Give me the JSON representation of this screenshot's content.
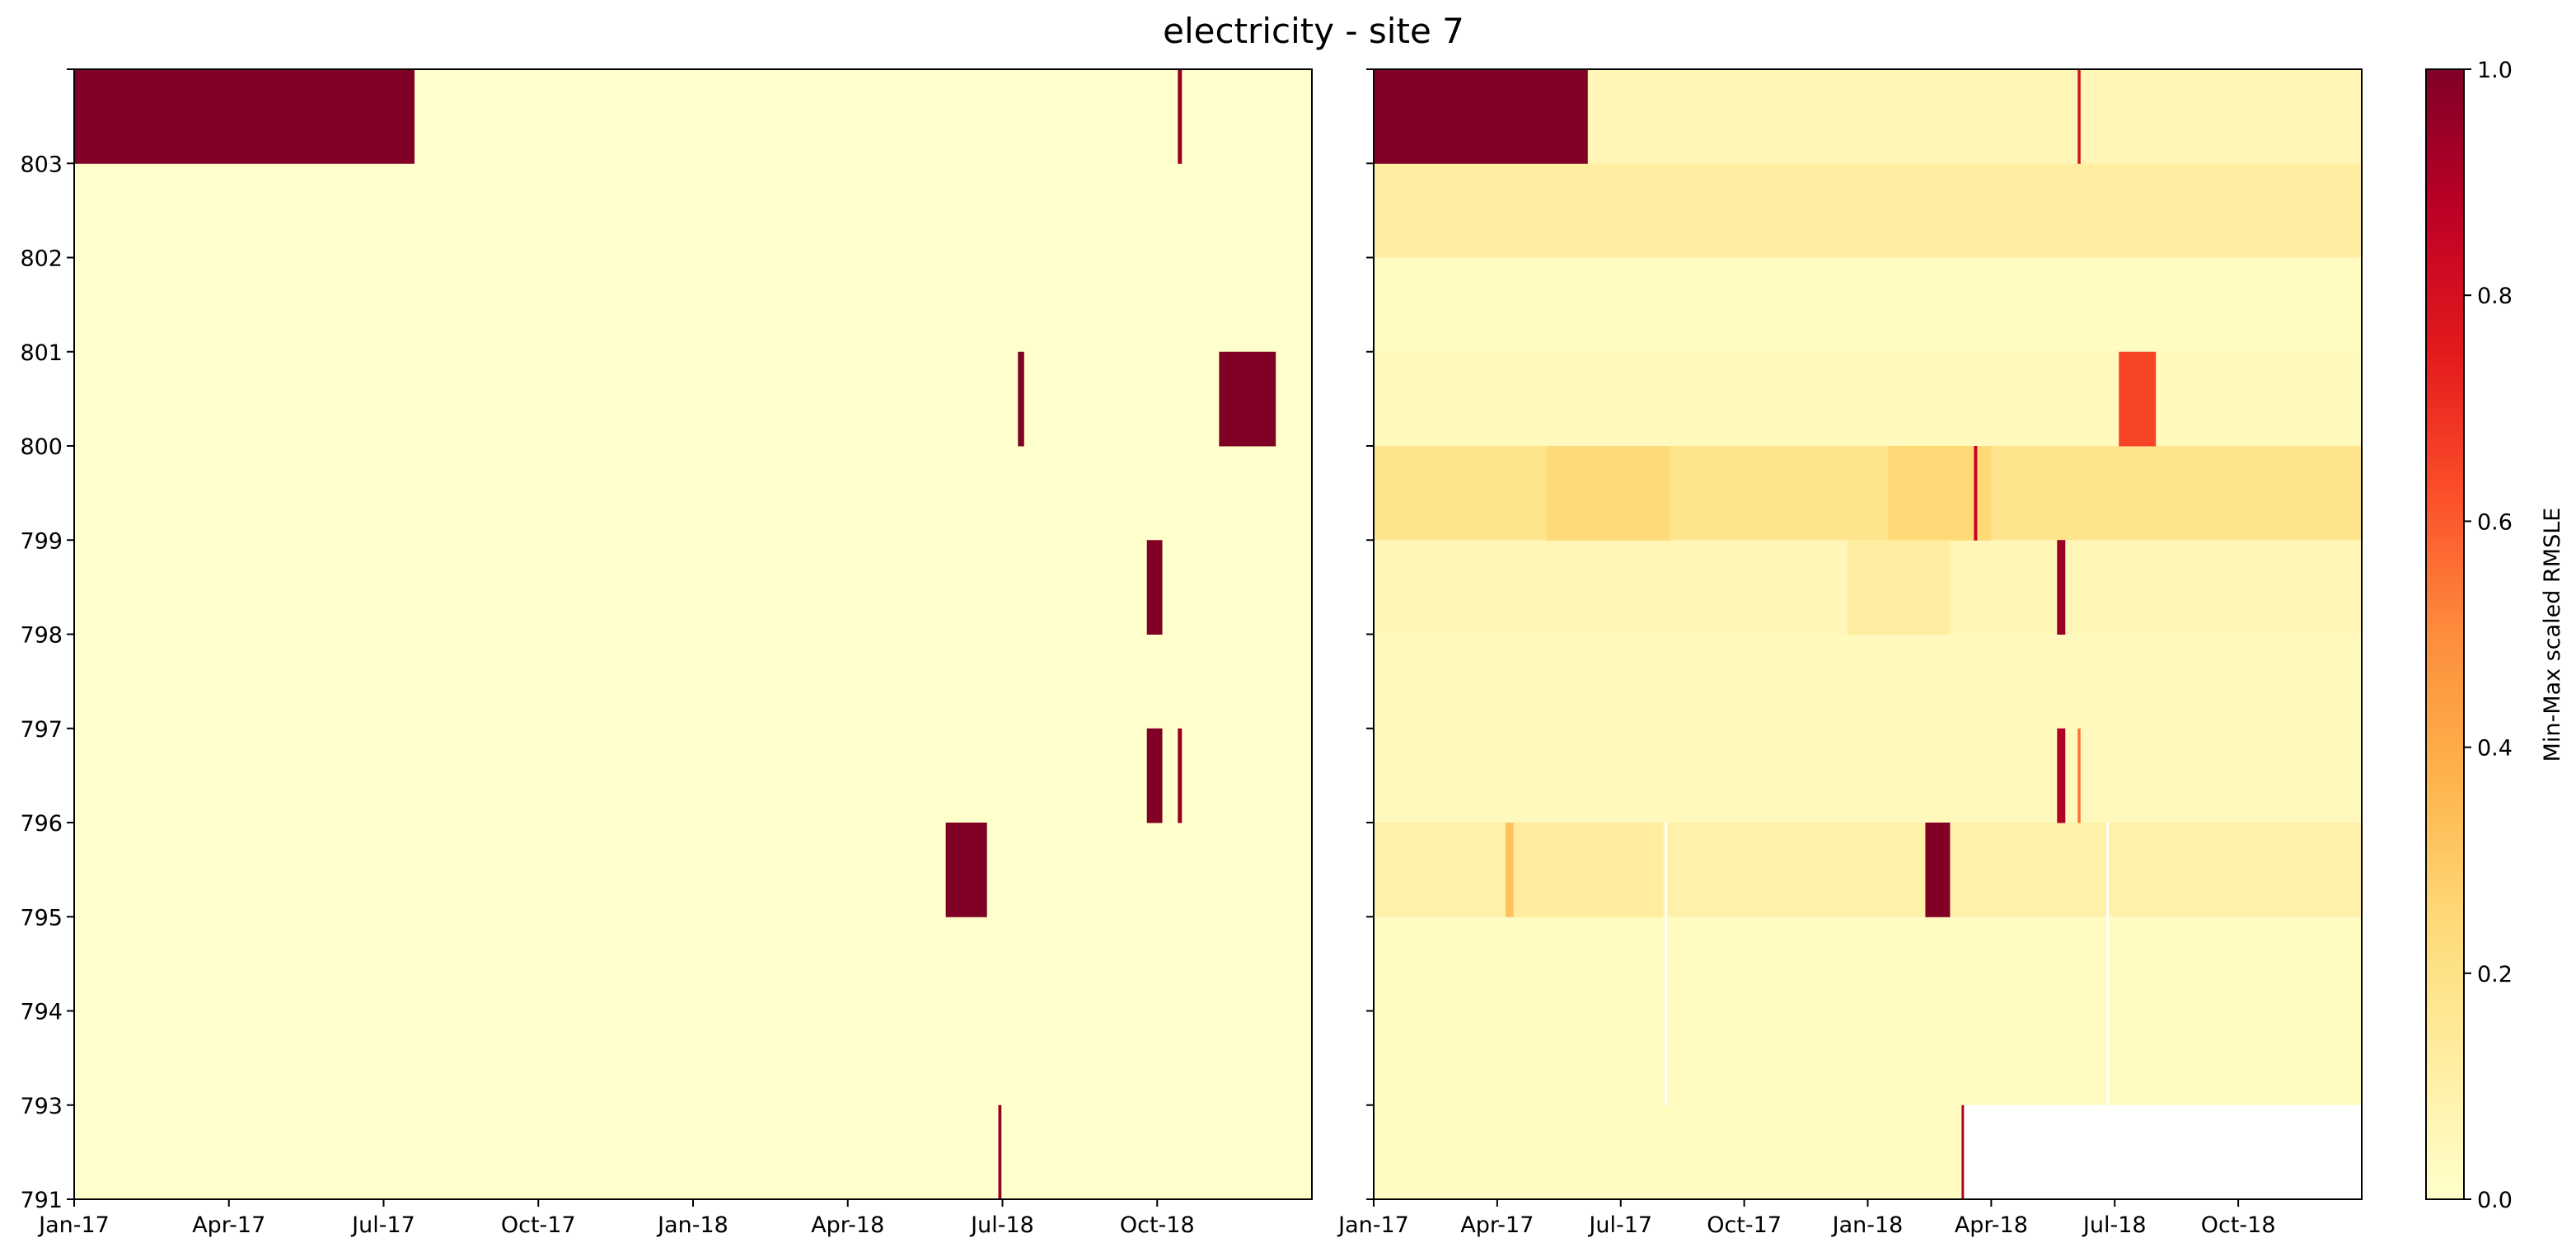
{
  "title": "electricity - site 7",
  "chart_data": {
    "type": "heatmap",
    "title": "electricity - site 7",
    "x_ticks": [
      "Jan-17",
      "Apr-17",
      "Jul-17",
      "Oct-17",
      "Jan-18",
      "Apr-18",
      "Jul-18",
      "Oct-18"
    ],
    "x_tick_months": [
      0,
      3,
      6,
      9,
      12,
      15,
      18,
      21
    ],
    "x_range_months": [
      0,
      24
    ],
    "y_ticks": [
      "791",
      "793",
      "794",
      "795",
      "796",
      "797",
      "798",
      "799",
      "800",
      "801",
      "802",
      "803"
    ],
    "rows": [
      "803",
      "802",
      "801",
      "800",
      "799",
      "798",
      "797",
      "796",
      "795",
      "794",
      "793",
      "791"
    ],
    "colorbar": {
      "label": "Min-Max scaled RMSLE",
      "range": [
        0,
        1
      ],
      "ticks": [
        "0.0",
        "0.2",
        "0.4",
        "0.6",
        "0.8",
        "1.0"
      ],
      "tick_values": [
        0,
        0.2,
        0.4,
        0.6,
        0.8,
        1.0
      ],
      "colormap": "YlOrRd",
      "colors": [
        "#ffffcc",
        "#ffeda0",
        "#fed976",
        "#feb24c",
        "#fd8d3c",
        "#fc4e2a",
        "#e31a1c",
        "#bd0026",
        "#800026"
      ]
    },
    "panels": [
      {
        "name": "left",
        "background": 0,
        "cells": [
          {
            "row": "803",
            "start": 0,
            "end": 6.6,
            "value": 1.0
          },
          {
            "row": "803",
            "start": 21.4,
            "end": 21.48,
            "value": 0.95
          },
          {
            "row": "800",
            "start": 18.3,
            "end": 18.42,
            "value": 1.0
          },
          {
            "row": "798",
            "start": 20.8,
            "end": 21.1,
            "value": 1.0
          },
          {
            "row": "796",
            "start": 20.8,
            "end": 21.1,
            "value": 1.0
          },
          {
            "row": "796",
            "start": 21.4,
            "end": 21.48,
            "value": 0.95
          },
          {
            "row": "795",
            "start": 16.9,
            "end": 17.7,
            "value": 1.0
          },
          {
            "row": "791",
            "start": 17.92,
            "end": 17.98,
            "value": 0.95
          },
          {
            "row": "800",
            "start": 22.2,
            "end": 23.3,
            "value": 1.0
          }
        ]
      },
      {
        "name": "right",
        "row_background": {
          "803": 0.06,
          "802": 0.12,
          "801": 0.03,
          "800": 0.04,
          "799": 0.18,
          "798": 0.06,
          "797": 0.04,
          "796": 0.04,
          "795": 0.1,
          "794": 0.03,
          "793": 0.03,
          "791": 0.03
        },
        "cells": [
          {
            "row": "803",
            "start": 0,
            "end": 5.2,
            "value": 1.0
          },
          {
            "row": "803",
            "start": 17.1,
            "end": 17.17,
            "value": 0.8
          },
          {
            "row": "800",
            "start": 18.1,
            "end": 19.0,
            "value": 0.65
          },
          {
            "row": "799",
            "start": 4.2,
            "end": 7.2,
            "value": 0.24
          },
          {
            "row": "799",
            "start": 12.5,
            "end": 15.0,
            "value": 0.25
          },
          {
            "row": "799",
            "start": 14.58,
            "end": 14.66,
            "value": 0.85
          },
          {
            "row": "798",
            "start": 11.5,
            "end": 14.0,
            "value": 0.12
          },
          {
            "row": "798",
            "start": 16.6,
            "end": 16.8,
            "value": 0.95
          },
          {
            "row": "796",
            "start": 16.6,
            "end": 16.8,
            "value": 0.9
          },
          {
            "row": "796",
            "start": 17.1,
            "end": 17.17,
            "value": 0.55
          },
          {
            "row": "795",
            "start": 3.2,
            "end": 3.4,
            "value": 0.32
          },
          {
            "row": "795",
            "start": 3.4,
            "end": 7.0,
            "value": 0.13
          },
          {
            "row": "795",
            "start": 13.4,
            "end": 14.0,
            "value": 1.0
          },
          {
            "row": "795",
            "start": 7.07,
            "end": 7.13,
            "value": null
          },
          {
            "row": "794",
            "start": 7.07,
            "end": 7.13,
            "value": null
          },
          {
            "row": "793",
            "start": 7.07,
            "end": 7.13,
            "value": null
          },
          {
            "row": "795",
            "start": 17.8,
            "end": 17.86,
            "value": null
          },
          {
            "row": "794",
            "start": 17.8,
            "end": 17.86,
            "value": null
          },
          {
            "row": "793",
            "start": 17.8,
            "end": 17.86,
            "value": null
          },
          {
            "row": "791",
            "start": 14.28,
            "end": 14.34,
            "value": 0.9
          },
          {
            "row": "791",
            "start": 14.34,
            "end": 24,
            "value": null
          }
        ]
      }
    ]
  }
}
